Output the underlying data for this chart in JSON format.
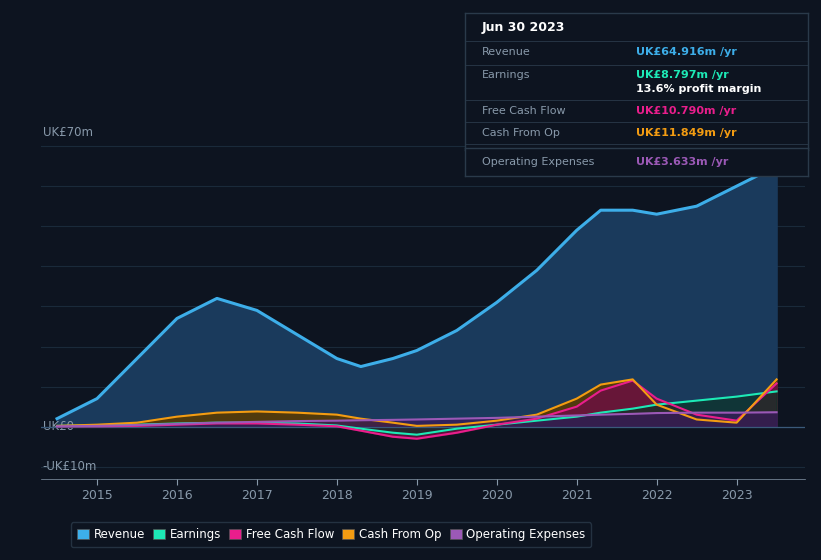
{
  "bg_color": "#0d1420",
  "plot_bg_color": "#0d1420",
  "ylabel_text": "UK£70m",
  "ylabel_zero": "UK£0",
  "ylabel_neg": "-UK£10m",
  "years": [
    2014.5,
    2015.0,
    2015.5,
    2016.0,
    2016.5,
    2017.0,
    2017.5,
    2018.0,
    2018.3,
    2018.7,
    2019.0,
    2019.5,
    2020.0,
    2020.5,
    2021.0,
    2021.3,
    2021.7,
    2022.0,
    2022.5,
    2023.0,
    2023.5
  ],
  "revenue": [
    2,
    7,
    17,
    27,
    32,
    29,
    23,
    17,
    15,
    17,
    19,
    24,
    31,
    39,
    49,
    54,
    54,
    53,
    55,
    60,
    65
  ],
  "earnings": [
    0.2,
    0.3,
    0.5,
    0.8,
    1.0,
    1.0,
    0.8,
    0.3,
    -0.5,
    -1.5,
    -2.0,
    -0.5,
    0.5,
    1.5,
    2.5,
    3.5,
    4.5,
    5.5,
    6.5,
    7.5,
    8.8
  ],
  "free_cash_flow": [
    0.1,
    0.1,
    0.2,
    0.5,
    0.8,
    0.8,
    0.5,
    0.1,
    -1.0,
    -2.5,
    -3.0,
    -1.5,
    0.5,
    2.0,
    5.0,
    9.0,
    11.5,
    7.0,
    3.0,
    1.5,
    10.8
  ],
  "cash_from_op": [
    0.2,
    0.5,
    1.0,
    2.5,
    3.5,
    3.8,
    3.5,
    3.0,
    2.0,
    1.0,
    0.2,
    0.5,
    1.5,
    3.0,
    7.0,
    10.5,
    11.8,
    5.5,
    1.8,
    1.0,
    11.8
  ],
  "op_expenses": [
    0.1,
    0.2,
    0.4,
    0.7,
    1.0,
    1.2,
    1.4,
    1.5,
    1.6,
    1.7,
    1.8,
    2.0,
    2.2,
    2.5,
    2.8,
    3.0,
    3.2,
    3.4,
    3.5,
    3.5,
    3.6
  ],
  "revenue_color": "#3daee9",
  "earnings_color": "#1de9b6",
  "fcf_color": "#e91e8c",
  "cashop_color": "#f39c12",
  "opex_color": "#9b59b6",
  "revenue_fill_color": "#1a3a5c",
  "cashop_fill_color": "#5c3a00",
  "fcf_fill_color": "#6b1040",
  "earnings_fill_color": "#0d3328",
  "opex_fill_color": "#3a1a5c",
  "xlim_min": 2014.3,
  "xlim_max": 2023.85,
  "ylim_min": -13,
  "ylim_max": 75,
  "grid_color": "#1a2a3a",
  "tick_color": "#8899aa",
  "info_title": "Jun 30 2023",
  "info_revenue_label": "Revenue",
  "info_revenue_val": "UK£64.916m /yr",
  "info_earnings_label": "Earnings",
  "info_earnings_val": "UK£8.797m /yr",
  "info_margin": "13.6% profit margin",
  "info_fcf_label": "Free Cash Flow",
  "info_fcf_val": "UK£10.790m /yr",
  "info_cashop_label": "Cash From Op",
  "info_cashop_val": "UK£11.849m /yr",
  "info_opex_label": "Operating Expenses",
  "info_opex_val": "UK£3.633m /yr",
  "legend_labels": [
    "Revenue",
    "Earnings",
    "Free Cash Flow",
    "Cash From Op",
    "Operating Expenses"
  ],
  "legend_colors": [
    "#3daee9",
    "#1de9b6",
    "#e91e8c",
    "#f39c12",
    "#9b59b6"
  ],
  "table_bg": "#0d1420",
  "table_border": "#2a3a4a"
}
